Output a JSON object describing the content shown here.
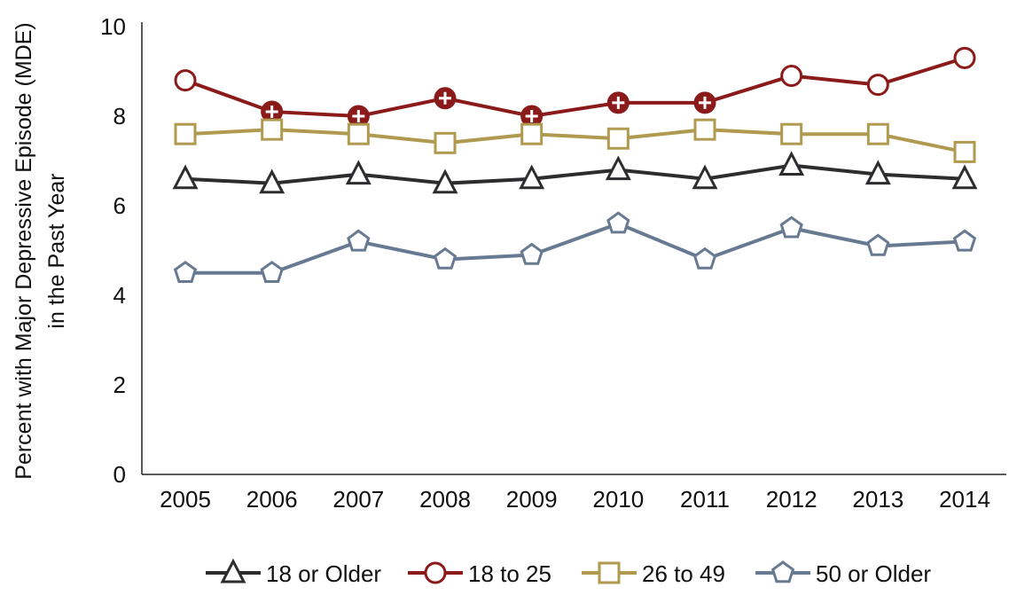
{
  "chart_data": {
    "type": "line",
    "title": "",
    "xlabel": "",
    "ylabel": [
      "Percent with Major Depressive Episode (MDE)",
      "in the Past Year"
    ],
    "categories": [
      "2005",
      "2006",
      "2007",
      "2008",
      "2009",
      "2010",
      "2011",
      "2012",
      "2013",
      "2014"
    ],
    "ylim": [
      0,
      10
    ],
    "yticks": [
      0,
      2,
      4,
      6,
      8,
      10
    ],
    "grid": false,
    "legend_placement": "bottom",
    "series": [
      {
        "name": "18 or Older",
        "marker": "triangle",
        "color": "#2d2d30",
        "values": [
          6.6,
          6.5,
          6.7,
          6.5,
          6.6,
          6.8,
          6.6,
          6.9,
          6.7,
          6.6
        ],
        "flagged": []
      },
      {
        "name": "18 to 25",
        "marker": "circle",
        "color": "#8b1a1a",
        "values": [
          8.8,
          8.1,
          8.0,
          8.4,
          8.0,
          8.3,
          8.3,
          8.9,
          8.7,
          9.3
        ],
        "flagged": [
          1,
          2,
          3,
          4,
          5,
          6
        ]
      },
      {
        "name": "26 to 49",
        "marker": "square",
        "color": "#b09a50",
        "values": [
          7.6,
          7.7,
          7.6,
          7.4,
          7.6,
          7.5,
          7.7,
          7.6,
          7.6,
          7.2
        ],
        "flagged": []
      },
      {
        "name": "50 or Older",
        "marker": "pentagon",
        "color": "#687a92",
        "values": [
          4.5,
          4.5,
          5.2,
          4.8,
          4.9,
          5.6,
          4.8,
          5.5,
          5.1,
          5.2
        ],
        "flagged": []
      }
    ]
  }
}
